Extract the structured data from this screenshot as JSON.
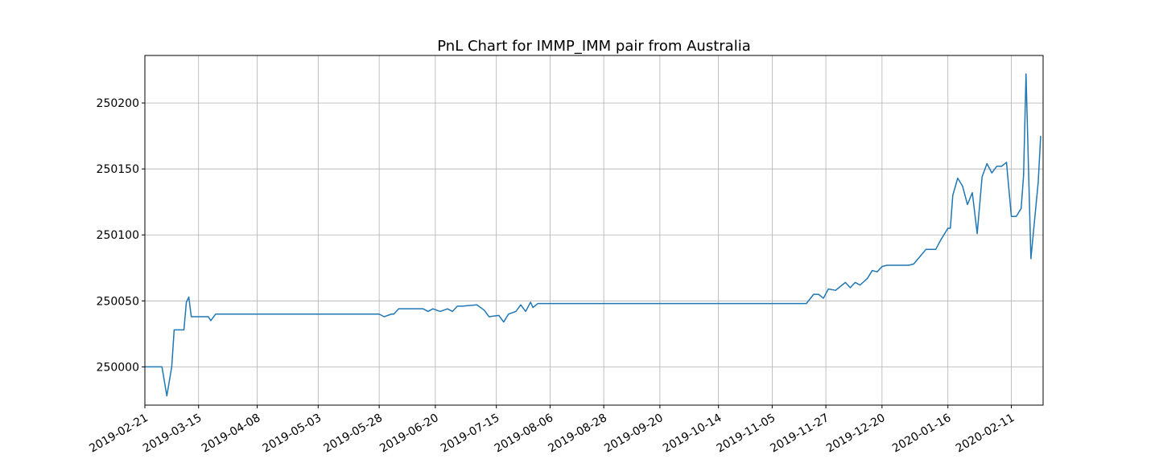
{
  "chart_data": {
    "type": "line",
    "title": "PnL Chart for IMMP_IMM pair from Australia",
    "xlabel": "",
    "ylabel": "",
    "x_type": "date",
    "xlim": [
      "2019-02-21",
      "2020-02-24"
    ],
    "ylim": [
      249971,
      250236
    ],
    "grid": true,
    "line_color": "#1f77b4",
    "x_ticks": [
      "2019-02-21",
      "2019-03-15",
      "2019-04-08",
      "2019-05-03",
      "2019-05-28",
      "2019-06-20",
      "2019-07-15",
      "2019-08-06",
      "2019-08-28",
      "2019-09-20",
      "2019-10-14",
      "2019-11-05",
      "2019-11-27",
      "2019-12-20",
      "2020-01-16",
      "2020-02-11"
    ],
    "y_ticks": [
      250000,
      250050,
      250100,
      250150,
      250200
    ],
    "series": [
      {
        "x": [
          "2019-02-21",
          "2019-02-28",
          "2019-03-02",
          "2019-03-04",
          "2019-03-05",
          "2019-03-09",
          "2019-03-10",
          "2019-03-11",
          "2019-03-12",
          "2019-03-19",
          "2019-03-20",
          "2019-03-22",
          "2019-05-03",
          "2019-05-28",
          "2019-05-30",
          "2019-06-02",
          "2019-06-03",
          "2019-06-05",
          "2019-06-15",
          "2019-06-17",
          "2019-06-19",
          "2019-06-22",
          "2019-06-25",
          "2019-06-27",
          "2019-06-29",
          "2019-07-01",
          "2019-07-07",
          "2019-07-10",
          "2019-07-12",
          "2019-07-16",
          "2019-07-18",
          "2019-07-20",
          "2019-07-23",
          "2019-07-25",
          "2019-07-27",
          "2019-07-29",
          "2019-07-30",
          "2019-08-01",
          "2019-08-03",
          "2019-11-05",
          "2019-11-19",
          "2019-11-22",
          "2019-11-24",
          "2019-11-26",
          "2019-11-28",
          "2019-12-01",
          "2019-12-03",
          "2019-12-05",
          "2019-12-07",
          "2019-12-09",
          "2019-12-11",
          "2019-12-14",
          "2019-12-16",
          "2019-12-18",
          "2019-12-20",
          "2019-12-22",
          "2019-12-31",
          "2020-01-02",
          "2020-01-07",
          "2020-01-09",
          "2020-01-11",
          "2020-01-13",
          "2020-01-16",
          "2020-01-17",
          "2020-01-18",
          "2020-01-20",
          "2020-01-22",
          "2020-01-24",
          "2020-01-26",
          "2020-01-28",
          "2020-01-30",
          "2020-02-01",
          "2020-02-03",
          "2020-02-05",
          "2020-02-07",
          "2020-02-09",
          "2020-02-11",
          "2020-02-13",
          "2020-02-15",
          "2020-02-16",
          "2020-02-17",
          "2020-02-19",
          "2020-02-22",
          "2020-02-23"
        ],
        "y": [
          250000,
          250000,
          249978,
          250000,
          250028,
          250028,
          250049,
          250053,
          250038,
          250038,
          250035,
          250040,
          250040,
          250040,
          250038,
          250040,
          250040,
          250044,
          250044,
          250042,
          250044,
          250042,
          250044,
          250042,
          250046,
          250046,
          250047,
          250043,
          250038,
          250039,
          250034,
          250040,
          250042,
          250047,
          250042,
          250049,
          250045,
          250048,
          250048,
          250048,
          250048,
          250055,
          250055,
          250052,
          250059,
          250058,
          250061,
          250064,
          250060,
          250064,
          250062,
          250067,
          250073,
          250072,
          250076,
          250077,
          250077,
          250078,
          250089,
          250089,
          250089,
          250096,
          250105,
          250105,
          250130,
          250143,
          250137,
          250123,
          250132,
          250101,
          250144,
          250154,
          250147,
          250152,
          250152,
          250155,
          250114,
          250114,
          250120,
          250145,
          250222,
          250082,
          250140,
          250175
        ]
      }
    ]
  }
}
